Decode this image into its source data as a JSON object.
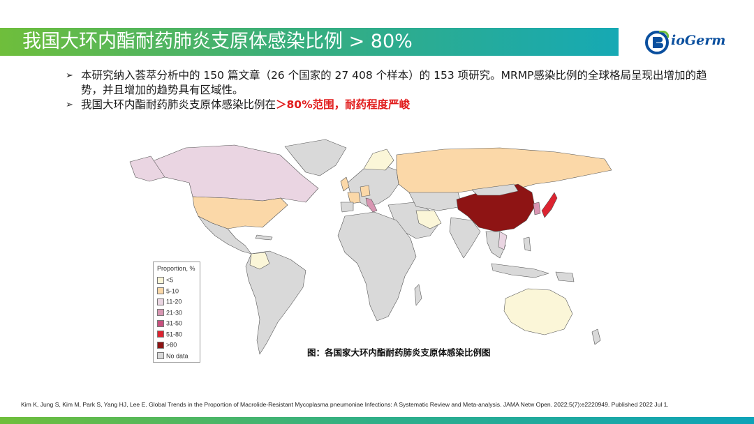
{
  "header": {
    "title": "我国大环内酯耐药肺炎支原体感染比例 > 80%",
    "logo_text": "ioGerm",
    "logo_letter": "B"
  },
  "bullets": [
    {
      "icon": "arrow-bullet-icon",
      "text": "本研究纳入荟萃分析中的 150 篇文章（26 个国家的 27 408 个样本）的 153 项研究。MRMP感染比例的全球格局呈现出增加的趋势，并且增加的趋势具有区域性。"
    },
    {
      "icon": "arrow-bullet-icon",
      "text": "我国大环内酯耐药肺炎支原体感染比例在",
      "highlight": "＞80%范围，耐药程度严峻"
    }
  ],
  "map": {
    "legend_title": "Proportion, %",
    "legend": [
      {
        "label": "<5",
        "color": "#fbf6d8"
      },
      {
        "label": "5-10",
        "color": "#fbd8a8"
      },
      {
        "label": "11-20",
        "color": "#ead5e2"
      },
      {
        "label": "21-30",
        "color": "#d896b2"
      },
      {
        "label": "31-50",
        "color": "#c8507e"
      },
      {
        "label": "51-80",
        "color": "#dc2330"
      },
      {
        "label": ">80",
        "color": "#8e1414"
      },
      {
        "label": "No data",
        "color": "#d9d9d9"
      }
    ],
    "caption": "图：各国家大环内酯耐药肺炎支原体感染比例图"
  },
  "citation": "Kim K, Jung S, Kim M, Park S, Yang HJ, Lee E. Global Trends in the Proportion of Macrolide-Resistant Mycoplasma pneumoniae Infections: A Systematic Review and Meta-analysis. JAMA Netw Open. 2022;5(7):e2220949. Published 2022 Jul 1.",
  "colors": {
    "accent_green": "#6fbe3b",
    "accent_teal": "#16a9b4",
    "highlight_red": "#e11d1d",
    "logo_blue": "#0a4f9e"
  }
}
